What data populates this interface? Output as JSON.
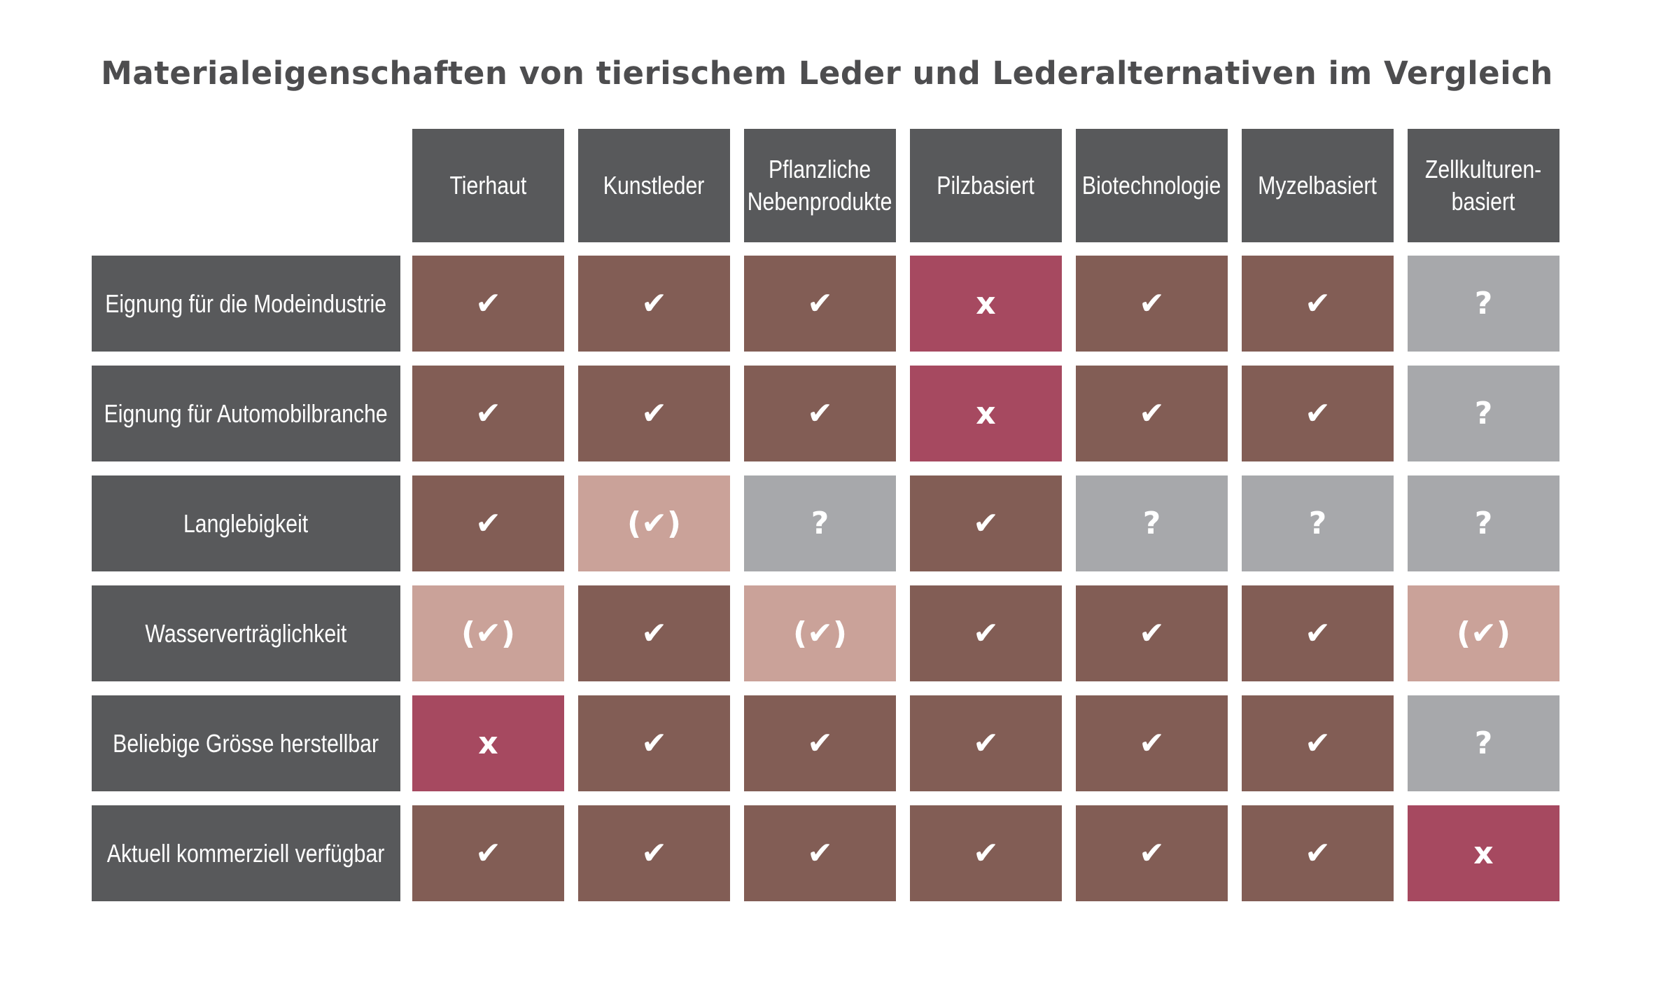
{
  "title": "Materialeigenschaften von tierischem Leder und Lederalternativen im Vergleich",
  "colors": {
    "header": "#58595b",
    "yes": "#825d55",
    "partial": "#caa299",
    "unknown": "#a7a8ab",
    "no": "#a64960"
  },
  "symbols": {
    "yes": "✔",
    "partial": "(✔)",
    "unknown": "?",
    "no": "x"
  },
  "chart_data": {
    "type": "table",
    "title": "Materialeigenschaften von tierischem Leder und Lederalternativen im Vergleich",
    "columns": [
      "Tierhaut",
      "Kunstleder",
      "Pflanzliche\nNebenprodukte",
      "Pilzbasiert",
      "Biotechnologie",
      "Myzelbasiert",
      "Zellkulturen-\nbasiert"
    ],
    "rows": [
      {
        "label": "Eignung für die Modeindustrie",
        "values": [
          "yes",
          "yes",
          "yes",
          "no",
          "yes",
          "yes",
          "unknown"
        ]
      },
      {
        "label": "Eignung für Automobilbranche",
        "values": [
          "yes",
          "yes",
          "yes",
          "no",
          "yes",
          "yes",
          "unknown"
        ]
      },
      {
        "label": "Langlebigkeit",
        "values": [
          "yes",
          "partial",
          "unknown",
          "yes",
          "unknown",
          "unknown",
          "unknown"
        ]
      },
      {
        "label": "Wasserverträglichkeit",
        "values": [
          "partial",
          "yes",
          "partial",
          "yes",
          "yes",
          "yes",
          "partial"
        ]
      },
      {
        "label": "Beliebige Grösse herstellbar",
        "values": [
          "no",
          "yes",
          "yes",
          "yes",
          "yes",
          "yes",
          "unknown"
        ]
      },
      {
        "label": "Aktuell kommerziell verfügbar",
        "values": [
          "yes",
          "yes",
          "yes",
          "yes",
          "yes",
          "yes",
          "no"
        ]
      }
    ]
  }
}
